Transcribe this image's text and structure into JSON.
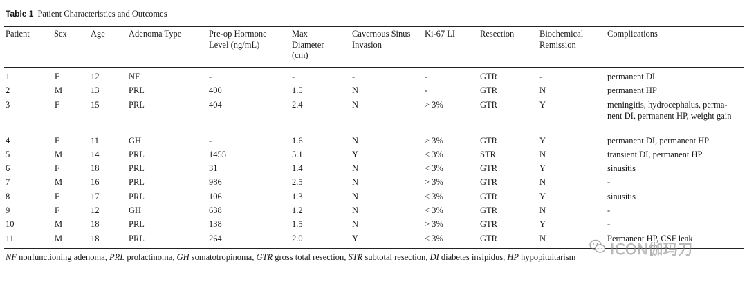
{
  "caption": {
    "label": "Table 1",
    "title": "Patient Characteristics and Outcomes"
  },
  "headers": {
    "patient": "Patient",
    "sex": "Sex",
    "age": "Age",
    "type": "Adenoma Type",
    "hormone_1": "Pre-op Hormone",
    "hormone_2": "Level (ng/mL)",
    "diam_1": "Max",
    "diam_2": "Diameter",
    "diam_3": "(cm)",
    "sinus_1": "Cavernous Sinus",
    "sinus_2": "Invasion",
    "ki": "Ki-67 LI",
    "resection": "Resection",
    "remission_1": "Biochemical",
    "remission_2": "Remission",
    "complications": "Complications"
  },
  "rows": [
    {
      "patient": "1",
      "sex": "F",
      "age": "12",
      "type": "NF",
      "hormone": "-",
      "diameter": "-",
      "sinus": "-",
      "ki67": "-",
      "resection": "GTR",
      "remission": "-",
      "complications": "permanent DI"
    },
    {
      "patient": "2",
      "sex": "M",
      "age": "13",
      "type": "PRL",
      "hormone": "400",
      "diameter": "1.5",
      "sinus": "N",
      "ki67": "-",
      "resection": "GTR",
      "remission": "N",
      "complications": "permanent HP"
    },
    {
      "patient": "3",
      "sex": "F",
      "age": "15",
      "type": "PRL",
      "hormone": "404",
      "diameter": "2.4",
      "sinus": "N",
      "ki67": "> 3%",
      "resection": "GTR",
      "remission": "Y",
      "complications": "meningitis, hydrocephalus, perma-nent DI, permanent HP, weight gain"
    },
    {
      "patient": "4",
      "sex": "F",
      "age": "11",
      "type": "GH",
      "hormone": "-",
      "diameter": "1.6",
      "sinus": "N",
      "ki67": "> 3%",
      "resection": "GTR",
      "remission": "Y",
      "complications": "permanent DI, permanent HP"
    },
    {
      "patient": "5",
      "sex": "M",
      "age": "14",
      "type": "PRL",
      "hormone": "1455",
      "diameter": "5.1",
      "sinus": "Y",
      "ki67": "< 3%",
      "resection": "STR",
      "remission": "N",
      "complications": "transient DI, permanent HP"
    },
    {
      "patient": "6",
      "sex": "F",
      "age": "18",
      "type": "PRL",
      "hormone": "31",
      "diameter": "1.4",
      "sinus": "N",
      "ki67": "< 3%",
      "resection": "GTR",
      "remission": "Y",
      "complications": "sinusitis"
    },
    {
      "patient": "7",
      "sex": "M",
      "age": "16",
      "type": "PRL",
      "hormone": "986",
      "diameter": "2.5",
      "sinus": "N",
      "ki67": "> 3%",
      "resection": "GTR",
      "remission": "N",
      "complications": "-"
    },
    {
      "patient": "8",
      "sex": "F",
      "age": "17",
      "type": "PRL",
      "hormone": "106",
      "diameter": "1.3",
      "sinus": "N",
      "ki67": "< 3%",
      "resection": "GTR",
      "remission": "Y",
      "complications": "sinusitis"
    },
    {
      "patient": "9",
      "sex": "F",
      "age": "12",
      "type": "GH",
      "hormone": "638",
      "diameter": "1.2",
      "sinus": "N",
      "ki67": "< 3%",
      "resection": "GTR",
      "remission": "N",
      "complications": "-"
    },
    {
      "patient": "10",
      "sex": "M",
      "age": "18",
      "type": "PRL",
      "hormone": "138",
      "diameter": "1.5",
      "sinus": "N",
      "ki67": "> 3%",
      "resection": "GTR",
      "remission": "Y",
      "complications": "-"
    },
    {
      "patient": "11",
      "sex": "M",
      "age": "18",
      "type": "PRL",
      "hormone": "264",
      "diameter": "2.0",
      "sinus": "Y",
      "ki67": "< 3%",
      "resection": "GTR",
      "remission": "N",
      "complications": "Permanent HP, CSF leak"
    }
  ],
  "footnote": [
    {
      "abbr": "NF",
      "def": " nonfunctioning adenoma, "
    },
    {
      "abbr": "PRL",
      "def": " prolactinoma, "
    },
    {
      "abbr": "GH",
      "def": " somatotropinoma, "
    },
    {
      "abbr": "GTR",
      "def": " gross total resection, "
    },
    {
      "abbr": "STR",
      "def": " subtotal resection, "
    },
    {
      "abbr": "DI",
      "def": " diabetes insipidus, "
    },
    {
      "abbr": "HP",
      "def": " hypopituitarism"
    }
  ],
  "watermark": {
    "text": "ICON伽玛刀",
    "icon": "wechat-icon"
  }
}
